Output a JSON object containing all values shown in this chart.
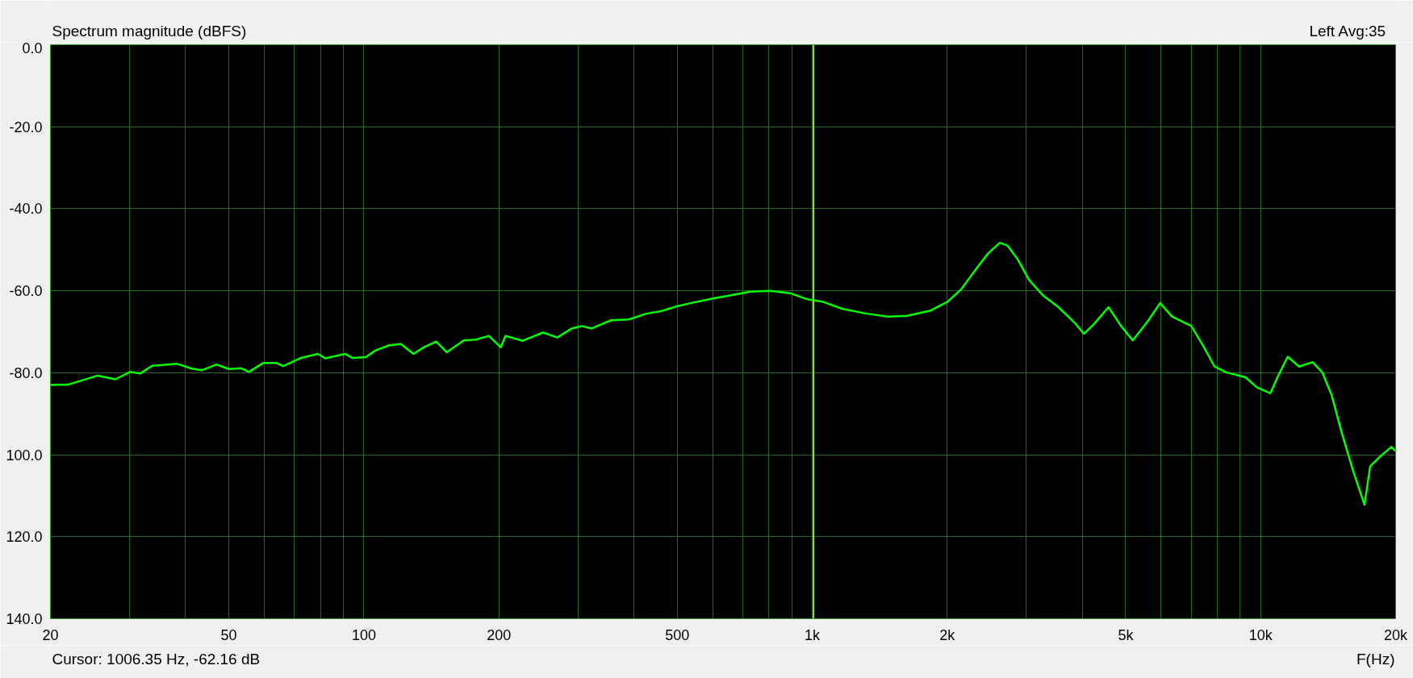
{
  "chart_data": {
    "type": "line",
    "ylabel": "Spectrum magnitude (dBFS)",
    "xlabel": "F(Hz)",
    "annotations": [
      "Left  Avg:35",
      "Cursor: 1006.35 Hz, -62.16 dB"
    ],
    "log": "x",
    "grid": true,
    "xlim": [
      20,
      20000
    ],
    "ylim": [
      -140,
      0
    ],
    "xticks": [
      20,
      {
        "value": 30,
        "label": null
      },
      {
        "value": 40,
        "label": null
      },
      50,
      {
        "value": 60,
        "label": null
      },
      {
        "value": 70,
        "label": null
      },
      {
        "value": 80,
        "label": null
      },
      {
        "value": 90,
        "label": null
      },
      100,
      200,
      {
        "value": 300,
        "label": null
      },
      {
        "value": 400,
        "label": null
      },
      500,
      {
        "value": 600,
        "label": null
      },
      {
        "value": 700,
        "label": null
      },
      {
        "value": 800,
        "label": null
      },
      {
        "value": 900,
        "label": null
      },
      {
        "value": 1000,
        "label": "1k"
      },
      {
        "value": 2000,
        "label": "2k"
      },
      {
        "value": 3000,
        "label": null
      },
      {
        "value": 4000,
        "label": null
      },
      {
        "value": 5000,
        "label": "5k"
      },
      {
        "value": 6000,
        "label": null
      },
      {
        "value": 7000,
        "label": null
      },
      {
        "value": 8000,
        "label": null
      },
      {
        "value": 9000,
        "label": null
      },
      {
        "value": 10000,
        "label": "10k"
      },
      {
        "value": 20000,
        "label": "20k"
      }
    ],
    "yticks": [
      {
        "value": 0,
        "label": "0.0"
      },
      {
        "value": -20,
        "label": "-20.0"
      },
      {
        "value": -40,
        "label": "-40.0"
      },
      {
        "value": -60,
        "label": "-60.0"
      },
      {
        "value": -80,
        "label": "-80.0"
      },
      {
        "value": -100,
        "label": "100.0"
      },
      {
        "value": -120,
        "label": "120.0"
      },
      {
        "value": -140,
        "label": "140.0"
      }
    ],
    "ref_lines": [
      {
        "axis": "x",
        "value": 1006.35,
        "color": "#a8d040"
      }
    ],
    "x": [
      20,
      21.9,
      25.5,
      27.9,
      30.1,
      31.7,
      33.7,
      38.3,
      41.3,
      43.5,
      46.9,
      50.0,
      53.3,
      55.4,
      59.7,
      63.7,
      66.1,
      72.3,
      79.0,
      82.0,
      90.8,
      94.4,
      101,
      106,
      114,
      121,
      129,
      136,
      145,
      153,
      167,
      178,
      190,
      202,
      207,
      226,
      251,
      270,
      291,
      306,
      322,
      356,
      390,
      426,
      460,
      498,
      537,
      594,
      658,
      728,
      806,
      892,
      976,
      1056,
      1166,
      1310,
      1474,
      1626,
      1830,
      2002,
      2146,
      2322,
      2466,
      2620,
      2726,
      2866,
      3046,
      3266,
      3540,
      3838,
      4034,
      4242,
      4578,
      4882,
      5186,
      5622,
      5968,
      6340,
      7002,
      7432,
      7892,
      8374,
      9250,
      9816,
      10510,
      10934,
      11488,
      12184,
      13054,
      13716,
      14402,
      15140,
      16062,
      17040,
      17546,
      18438,
      19572,
      20000
    ],
    "series": [
      {
        "color": "#00ff00",
        "values": [
          -83.0,
          -82.9,
          -80.7,
          -81.6,
          -79.8,
          -80.2,
          -78.3,
          -77.8,
          -79.0,
          -79.4,
          -78.0,
          -79.1,
          -78.9,
          -79.8,
          -77.6,
          -77.6,
          -78.4,
          -76.4,
          -75.4,
          -76.5,
          -75.4,
          -76.4,
          -76.2,
          -74.6,
          -73.3,
          -73.0,
          -75.4,
          -73.8,
          -72.4,
          -75.0,
          -72.1,
          -71.9,
          -71.0,
          -73.8,
          -71.0,
          -72.2,
          -70.2,
          -71.4,
          -69.2,
          -68.6,
          -69.2,
          -67.2,
          -67.0,
          -65.6,
          -65.0,
          -63.8,
          -63.0,
          -62.0,
          -61.1,
          -60.2,
          -60.0,
          -60.6,
          -62.1,
          -62.7,
          -64.4,
          -65.5,
          -66.3,
          -66.1,
          -64.9,
          -62.7,
          -59.7,
          -54.6,
          -50.9,
          -48.3,
          -49.0,
          -52.2,
          -57.4,
          -61.1,
          -64.0,
          -67.7,
          -70.5,
          -68.2,
          -64.0,
          -68.6,
          -72.1,
          -67.2,
          -63.0,
          -66.3,
          -68.6,
          -73.3,
          -78.5,
          -79.9,
          -81.1,
          -83.6,
          -85.0,
          -80.8,
          -76.1,
          -78.5,
          -77.4,
          -79.9,
          -85.5,
          -94.4,
          -103.8,
          -112.2,
          -102.8,
          -100.5,
          -98.1,
          -99.1
        ]
      }
    ]
  }
}
